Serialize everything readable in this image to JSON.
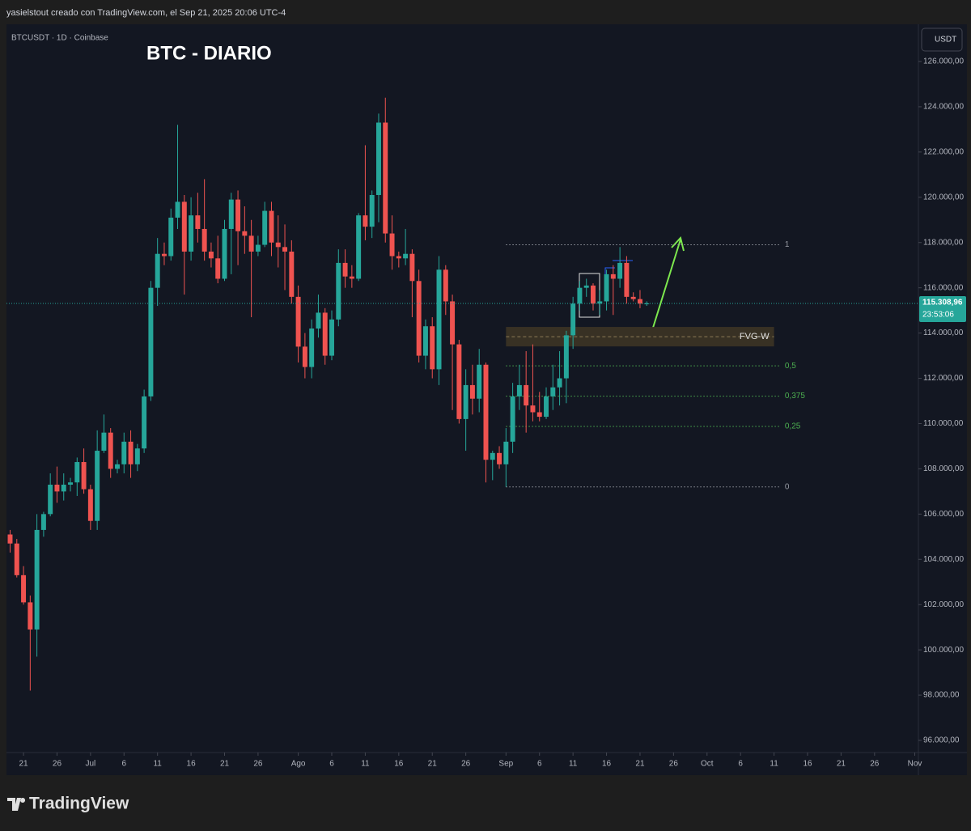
{
  "header": {
    "author_line": "yasielstout creado con TradingView.com, el Sep 21, 2025 20:06 UTC-4"
  },
  "footer": {
    "brand": "TradingView"
  },
  "chart_data": {
    "type": "candlestick",
    "symbol": "BTCUSDT · 1D · Coinbase",
    "title": "BTC - DIARIO",
    "currency": "USDT",
    "up_color": "#26a69a",
    "down_color": "#ef5350",
    "grid": false,
    "x": [
      "2025-06-19",
      "2025-06-20",
      "2025-06-21",
      "2025-06-22",
      "2025-06-23",
      "2025-06-24",
      "2025-06-25",
      "2025-06-26",
      "2025-06-27",
      "2025-06-28",
      "2025-06-29",
      "2025-06-30",
      "2025-07-01",
      "2025-07-02",
      "2025-07-03",
      "2025-07-04",
      "2025-07-05",
      "2025-07-06",
      "2025-07-07",
      "2025-07-08",
      "2025-07-09",
      "2025-07-10",
      "2025-07-11",
      "2025-07-12",
      "2025-07-13",
      "2025-07-14",
      "2025-07-15",
      "2025-07-16",
      "2025-07-17",
      "2025-07-18",
      "2025-07-19",
      "2025-07-20",
      "2025-07-21",
      "2025-07-22",
      "2025-07-23",
      "2025-07-24",
      "2025-07-25",
      "2025-07-26",
      "2025-07-27",
      "2025-07-28",
      "2025-07-29",
      "2025-07-30",
      "2025-07-31",
      "2025-08-01",
      "2025-08-02",
      "2025-08-03",
      "2025-08-04",
      "2025-08-05",
      "2025-08-06",
      "2025-08-07",
      "2025-08-08",
      "2025-08-09",
      "2025-08-10",
      "2025-08-11",
      "2025-08-12",
      "2025-08-13",
      "2025-08-14",
      "2025-08-15",
      "2025-08-16",
      "2025-08-17",
      "2025-08-18",
      "2025-08-19",
      "2025-08-20",
      "2025-08-21",
      "2025-08-22",
      "2025-08-23",
      "2025-08-24",
      "2025-08-25",
      "2025-08-26",
      "2025-08-27",
      "2025-08-28",
      "2025-08-29",
      "2025-08-30",
      "2025-08-31",
      "2025-09-01",
      "2025-09-02",
      "2025-09-03",
      "2025-09-04",
      "2025-09-05",
      "2025-09-06",
      "2025-09-07",
      "2025-09-08",
      "2025-09-09",
      "2025-09-10",
      "2025-09-11",
      "2025-09-12",
      "2025-09-13",
      "2025-09-14",
      "2025-09-15",
      "2025-09-16",
      "2025-09-17",
      "2025-09-18",
      "2025-09-19",
      "2025-09-20",
      "2025-09-21",
      "2025-09-22"
    ],
    "open": [
      105100,
      104700,
      103300,
      102100,
      100900,
      105300,
      106000,
      107300,
      107000,
      107300,
      107400,
      108300,
      107100,
      105700,
      108800,
      109600,
      108000,
      108200,
      109200,
      108200,
      108900,
      111200,
      116000,
      117500,
      117400,
      119100,
      119800,
      117600,
      119200,
      118600,
      117600,
      117300,
      116400,
      118600,
      119900,
      118500,
      118300,
      117600,
      117900,
      119400,
      118000,
      117800,
      117600,
      115600,
      113400,
      112500,
      114200,
      114900,
      113000,
      114600,
      117100,
      116500,
      116400,
      119200,
      118700,
      120100,
      123300,
      118400,
      117400,
      117300,
      117500,
      116300,
      113000,
      114300,
      112400,
      116800,
      115400,
      113500,
      110200,
      111700,
      111100,
      112600,
      108400,
      108700,
      108200,
      109200,
      111200,
      111700,
      110800,
      110500,
      110300,
      111200,
      111600,
      112000,
      113900,
      115300,
      116000,
      116100,
      115300,
      115400,
      116600,
      116400,
      117100,
      115600,
      115500,
      115300
    ],
    "high": [
      105300,
      104900,
      103700,
      102400,
      106000,
      106100,
      107800,
      108100,
      107800,
      107600,
      108500,
      108900,
      107300,
      109700,
      110400,
      109800,
      108400,
      109600,
      109700,
      109100,
      111500,
      116300,
      118200,
      118000,
      119500,
      123200,
      120100,
      120000,
      120200,
      120800,
      118000,
      118300,
      119000,
      120200,
      120300,
      119600,
      119000,
      118300,
      119800,
      119800,
      119200,
      118800,
      118100,
      116100,
      114000,
      114600,
      115700,
      115100,
      115000,
      117700,
      117700,
      117000,
      119300,
      122300,
      120300,
      123700,
      124400,
      119200,
      117600,
      118600,
      117700,
      116800,
      114600,
      114700,
      117400,
      117000,
      115700,
      113700,
      112400,
      112600,
      113300,
      112700,
      108800,
      109000,
      109800,
      111800,
      112600,
      113200,
      113500,
      111400,
      111600,
      112600,
      113200,
      114100,
      115600,
      116300,
      116400,
      116200,
      115900,
      116800,
      117000,
      117800,
      117400,
      115800,
      115900,
      115400
    ],
    "low": [
      104300,
      103200,
      102000,
      98200,
      99700,
      105000,
      105900,
      106500,
      106600,
      107000,
      106800,
      106900,
      105300,
      105300,
      108700,
      107600,
      107800,
      107800,
      107600,
      107900,
      108700,
      111000,
      115200,
      117000,
      117200,
      118600,
      115700,
      117200,
      118000,
      117200,
      116900,
      116200,
      116300,
      116600,
      117000,
      117500,
      114700,
      117400,
      117800,
      117400,
      116900,
      115900,
      115300,
      112700,
      112000,
      112000,
      113800,
      112600,
      112800,
      114300,
      116000,
      116000,
      116300,
      118100,
      118200,
      118900,
      118000,
      116800,
      116900,
      117000,
      114700,
      112700,
      112400,
      112000,
      111700,
      114800,
      110600,
      110000,
      108800,
      110400,
      110500,
      107400,
      107500,
      108000,
      107200,
      108700,
      110600,
      109600,
      110100,
      110100,
      110200,
      110600,
      110800,
      110900,
      113300,
      115000,
      115600,
      115000,
      114800,
      115000,
      114800,
      116000,
      115300,
      115400,
      115100,
      115200
    ],
    "close": [
      104700,
      103300,
      102100,
      100900,
      105300,
      106000,
      107300,
      107000,
      107300,
      107400,
      108300,
      107100,
      105700,
      108800,
      109600,
      108000,
      108200,
      109200,
      108200,
      108900,
      111200,
      116000,
      117500,
      117400,
      119100,
      119800,
      117600,
      119200,
      118600,
      117600,
      117300,
      116400,
      118600,
      119900,
      118500,
      118300,
      117600,
      117900,
      119400,
      118000,
      117800,
      117600,
      115600,
      113400,
      112500,
      114200,
      114900,
      113000,
      114600,
      117100,
      116500,
      116400,
      119200,
      118700,
      120100,
      123300,
      118400,
      117400,
      117300,
      117500,
      116300,
      113000,
      114300,
      112400,
      116800,
      115400,
      113500,
      110200,
      111700,
      111100,
      112600,
      108400,
      108700,
      108200,
      109200,
      111200,
      111700,
      110800,
      110500,
      110300,
      111200,
      111600,
      112000,
      113900,
      115300,
      116000,
      116100,
      115300,
      115400,
      116600,
      116400,
      117100,
      115600,
      115500,
      115300,
      115308.96
    ],
    "last_price": {
      "value": 115308.96,
      "label": "115.308,96"
    },
    "countdown": "23:53:06",
    "xlim": [
      "2025-06-18T11:00:00Z",
      "2025-11-01T13:00:00Z"
    ],
    "xticks": [
      {
        "value": "2025-06-21",
        "label": "21"
      },
      {
        "value": "2025-06-26",
        "label": "26"
      },
      {
        "value": "2025-07-01",
        "label": "Jul"
      },
      {
        "value": "2025-07-06",
        "label": "6"
      },
      {
        "value": "2025-07-11",
        "label": "11"
      },
      {
        "value": "2025-07-16",
        "label": "16"
      },
      {
        "value": "2025-07-21",
        "label": "21"
      },
      {
        "value": "2025-07-26",
        "label": "26"
      },
      {
        "value": "2025-08-01",
        "label": "Ago"
      },
      {
        "value": "2025-08-06",
        "label": "6"
      },
      {
        "value": "2025-08-11",
        "label": "11"
      },
      {
        "value": "2025-08-16",
        "label": "16"
      },
      {
        "value": "2025-08-21",
        "label": "21"
      },
      {
        "value": "2025-08-26",
        "label": "26"
      },
      {
        "value": "2025-09-01",
        "label": "Sep"
      },
      {
        "value": "2025-09-06",
        "label": "6"
      },
      {
        "value": "2025-09-11",
        "label": "11"
      },
      {
        "value": "2025-09-16",
        "label": "16"
      },
      {
        "value": "2025-09-21",
        "label": "21"
      },
      {
        "value": "2025-09-26",
        "label": "26"
      },
      {
        "value": "2025-10-01",
        "label": "Oct"
      },
      {
        "value": "2025-10-06",
        "label": "6"
      },
      {
        "value": "2025-10-11",
        "label": "11"
      },
      {
        "value": "2025-10-16",
        "label": "16"
      },
      {
        "value": "2025-10-21",
        "label": "21"
      },
      {
        "value": "2025-10-26",
        "label": "26"
      },
      {
        "value": "2025-11-01",
        "label": "Nov"
      }
    ],
    "ylim": [
      95464,
      127645
    ],
    "yticks": [
      {
        "value": 96000,
        "label": "96.000,00"
      },
      {
        "value": 98000,
        "label": "98.000,00"
      },
      {
        "value": 100000,
        "label": "100.000,00"
      },
      {
        "value": 102000,
        "label": "102.000,00"
      },
      {
        "value": 104000,
        "label": "104.000,00"
      },
      {
        "value": 106000,
        "label": "106.000,00"
      },
      {
        "value": 108000,
        "label": "108.000,00"
      },
      {
        "value": 110000,
        "label": "110.000,00"
      },
      {
        "value": 112000,
        "label": "112.000,00"
      },
      {
        "value": 114000,
        "label": "114.000,00"
      },
      {
        "value": 116000,
        "label": "116.000,00"
      },
      {
        "value": 118000,
        "label": "118.000,00"
      },
      {
        "value": 120000,
        "label": "120.000,00"
      },
      {
        "value": 122000,
        "label": "122.000,00"
      },
      {
        "value": 124000,
        "label": "124.000,00"
      },
      {
        "value": 126000,
        "label": "126.000,00"
      }
    ],
    "fib": {
      "start": "2025-09-01",
      "end": "2025-10-12",
      "levels": [
        {
          "label": "1",
          "price": 117900,
          "color": "#9598a1"
        },
        {
          "label": "0,5",
          "price": 112550,
          "color": "#4caf50"
        },
        {
          "label": "0,375",
          "price": 111212,
          "color": "#4caf50"
        },
        {
          "label": "0,25",
          "price": 109875,
          "color": "#4caf50"
        },
        {
          "label": "0",
          "price": 107200,
          "color": "#9598a1"
        }
      ]
    },
    "zone": {
      "label": "FVG-W",
      "top": 114270,
      "bottom": 113410,
      "start": "2025-09-01",
      "end": "2025-10-11",
      "color": "#3a3325"
    }
  }
}
